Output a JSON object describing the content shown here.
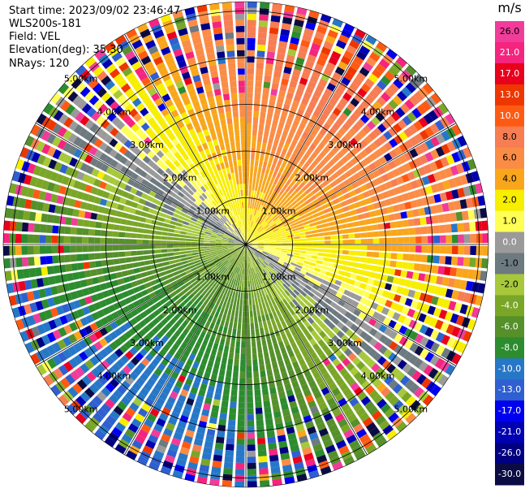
{
  "header": {
    "start_time": "Start time: 2023/09/02 23:46:47",
    "instrument": "WLS200s-181",
    "field": "Field: VEL",
    "elevation": "Elevation(deg): 35.30",
    "nrays": "NRays: 120"
  },
  "chart_data": {
    "type": "heatmap",
    "projection": "polar-ppi",
    "field": "VEL",
    "n_rays": 120,
    "elevation_deg": 35.3,
    "range_rings_km": [
      1.0,
      2.0,
      3.0,
      4.0,
      5.0
    ],
    "range_ring_labels": [
      "1.00km",
      "2.00km",
      "3.00km",
      "4.00km",
      "5.00km"
    ],
    "max_range_km": 5.2,
    "spoke_angles_deg": [
      0,
      30,
      60,
      90,
      120,
      150,
      180,
      210,
      240,
      270,
      300,
      330
    ],
    "colorbar": {
      "unit": "m/s",
      "tick_labels": [
        "26.0",
        "21.0",
        "17.0",
        "13.0",
        "10.0",
        "8.0",
        "6.0",
        "4.0",
        "2.0",
        "1.0",
        "0.0",
        "-1.0",
        "-2.0",
        "-4.0",
        "-6.0",
        "-8.0",
        "-10.0",
        "-13.0",
        "-17.0",
        "-21.0",
        "-26.0",
        "-30.0"
      ],
      "bins": [
        {
          "lo": 26,
          "hi": 30,
          "color": "#f13c9a"
        },
        {
          "lo": 21,
          "hi": 26,
          "color": "#f5247e"
        },
        {
          "lo": 17,
          "hi": 21,
          "color": "#e8001c"
        },
        {
          "lo": 13,
          "hi": 17,
          "color": "#ee3700"
        },
        {
          "lo": 10,
          "hi": 13,
          "color": "#ff5a14"
        },
        {
          "lo": 8,
          "hi": 10,
          "color": "#f77d52"
        },
        {
          "lo": 6,
          "hi": 8,
          "color": "#fb8c46"
        },
        {
          "lo": 4,
          "hi": 6,
          "color": "#f9a61c"
        },
        {
          "lo": 2,
          "hi": 4,
          "color": "#f8ee00"
        },
        {
          "lo": 1,
          "hi": 2,
          "color": "#ffff55"
        },
        {
          "lo": 0,
          "hi": 1,
          "color": "#9a9a9a"
        },
        {
          "lo": -1,
          "hi": 0,
          "color": "#6d7a80"
        },
        {
          "lo": -2,
          "hi": -1,
          "color": "#a6c83a"
        },
        {
          "lo": -4,
          "hi": -2,
          "color": "#7aa628"
        },
        {
          "lo": -6,
          "hi": -4,
          "color": "#55902a"
        },
        {
          "lo": -8,
          "hi": -6,
          "color": "#2c8c2e"
        },
        {
          "lo": -10,
          "hi": -8,
          "color": "#2777c8"
        },
        {
          "lo": -13,
          "hi": -10,
          "color": "#2f5fd0"
        },
        {
          "lo": -17,
          "hi": -13,
          "color": "#0000f0"
        },
        {
          "lo": -21,
          "hi": -17,
          "color": "#0000b4"
        },
        {
          "lo": -26,
          "hi": -21,
          "color": "#000080"
        },
        {
          "lo": -30,
          "hi": -26,
          "color": "#0c0c44"
        }
      ]
    },
    "velocity_pattern": {
      "description_free": true,
      "wind_direction_deg": 35,
      "near_surface_speed_ms": 2.0,
      "top_speed_ms": 11.0
    }
  }
}
